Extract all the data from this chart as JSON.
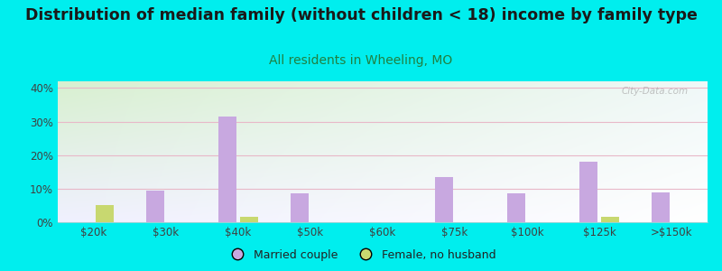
{
  "title": "Distribution of median family (without children < 18) income by family type",
  "subtitle": "All residents in Wheeling, MO",
  "categories": [
    "$20k",
    "$30k",
    "$40k",
    "$50k",
    "$60k",
    "$75k",
    "$100k",
    "$125k",
    ">$150k"
  ],
  "married_couple": [
    0,
    9.5,
    31.5,
    8.5,
    0,
    13.5,
    8.5,
    18.0,
    9.0
  ],
  "female_no_husband": [
    5.0,
    0,
    1.5,
    0,
    0,
    0,
    0,
    1.5,
    0
  ],
  "married_color": "#c8a8e0",
  "female_color": "#c8d870",
  "background_outer": "#00eeee",
  "background_inner_top_left": "#d8f0d0",
  "background_inner_bottom_right": "#f8f8ff",
  "grid_color": "#e8b8c8",
  "ylim": [
    0,
    42
  ],
  "yticks": [
    0,
    10,
    20,
    30,
    40
  ],
  "bar_width": 0.25,
  "title_fontsize": 12.5,
  "subtitle_fontsize": 10,
  "watermark": "City-Data.com"
}
